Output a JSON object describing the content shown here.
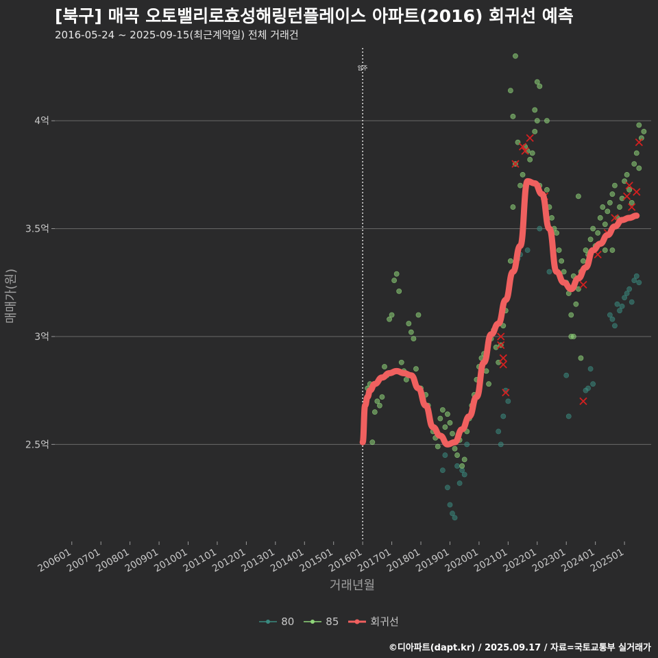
{
  "header": {
    "title": "[북구] 매곡 오토밸리로효성해링턴플레이스 아파트(2016) 회귀선 예측",
    "subtitle": "2016-05-24 ~ 2025-09-15(최근계약일) 전체 거래건"
  },
  "caption": "©디아파트(dapt.kr) / 2025.09.17 / 자료=국토교통부 실거래가",
  "colors": {
    "background": "#2a2a2b",
    "gridline": "#6a6a6a",
    "series_80": "#3a8a80",
    "series_85": "#8fd57a",
    "regression": "#f0605f",
    "highlight_x": "#d42020"
  },
  "chart_data": {
    "type": "scatter",
    "xlabel": "거래년월",
    "ylabel": "매매가(원)",
    "x_ticks": [
      "200601",
      "200701",
      "200801",
      "200901",
      "201001",
      "201101",
      "201201",
      "201301",
      "201401",
      "201501",
      "201601",
      "201701",
      "201801",
      "201901",
      "202001",
      "202101",
      "202201",
      "202301",
      "202401",
      "202501"
    ],
    "y_ticks": [
      {
        "value": 2.5,
        "label": "2.5억"
      },
      {
        "value": 3.0,
        "label": "3억"
      },
      {
        "value": 3.5,
        "label": "3.5억"
      },
      {
        "value": 4.0,
        "label": "4억"
      }
    ],
    "ylim": [
      2.05,
      4.35
    ],
    "xlim": [
      "2005-06",
      "2025-12"
    ],
    "annotation": {
      "label": "입주",
      "x": "2016-01"
    },
    "legend": {
      "position": "bottom",
      "entries": [
        {
          "key": "80",
          "label": "80"
        },
        {
          "key": "85",
          "label": "85"
        },
        {
          "key": "reg",
          "label": "회귀선"
        }
      ]
    },
    "series": [
      {
        "name": "80",
        "points": [
          [
            "2019-02",
            2.18
          ],
          [
            "2019-03",
            2.16
          ],
          [
            "2019-01",
            2.22
          ],
          [
            "2018-12",
            2.3
          ],
          [
            "2019-05",
            2.32
          ],
          [
            "2019-06",
            2.38
          ],
          [
            "2019-04",
            2.4
          ],
          [
            "2019-07",
            2.36
          ],
          [
            "2018-11",
            2.45
          ],
          [
            "2018-10",
            2.38
          ],
          [
            "2019-08",
            2.5
          ],
          [
            "2020-10",
            2.5
          ],
          [
            "2020-09",
            2.56
          ],
          [
            "2020-11",
            2.63
          ],
          [
            "2021-01",
            2.7
          ],
          [
            "2020-12",
            2.75
          ],
          [
            "2021-03",
            3.3
          ],
          [
            "2021-04",
            3.33
          ],
          [
            "2021-05",
            3.36
          ],
          [
            "2021-06",
            3.38
          ],
          [
            "2021-09",
            3.4
          ],
          [
            "2022-02",
            3.5
          ],
          [
            "2022-06",
            3.3
          ],
          [
            "2023-02",
            2.63
          ],
          [
            "2023-01",
            2.82
          ],
          [
            "2023-09",
            2.75
          ],
          [
            "2023-10",
            2.76
          ],
          [
            "2023-12",
            2.78
          ],
          [
            "2023-11",
            2.85
          ],
          [
            "2024-07",
            3.1
          ],
          [
            "2024-08",
            3.08
          ],
          [
            "2024-09",
            3.05
          ],
          [
            "2024-10",
            3.15
          ],
          [
            "2024-11",
            3.12
          ],
          [
            "2025-01",
            3.18
          ],
          [
            "2025-02",
            3.2
          ],
          [
            "2025-03",
            3.22
          ],
          [
            "2025-05",
            3.26
          ],
          [
            "2025-06",
            3.28
          ],
          [
            "2025-07",
            3.25
          ],
          [
            "2024-12",
            3.14
          ],
          [
            "2025-04",
            3.16
          ]
        ]
      },
      {
        "name": "85",
        "points": [
          [
            "2016-03",
            2.76
          ],
          [
            "2016-04",
            2.78
          ],
          [
            "2016-05",
            2.51
          ],
          [
            "2016-06",
            2.65
          ],
          [
            "2016-07",
            2.7
          ],
          [
            "2016-08",
            2.68
          ],
          [
            "2016-09",
            2.72
          ],
          [
            "2016-10",
            2.86
          ],
          [
            "2016-11",
            2.82
          ],
          [
            "2016-12",
            3.08
          ],
          [
            "2017-01",
            3.1
          ],
          [
            "2017-02",
            3.26
          ],
          [
            "2017-03",
            3.29
          ],
          [
            "2017-04",
            3.21
          ],
          [
            "2017-05",
            2.88
          ],
          [
            "2017-06",
            2.84
          ],
          [
            "2017-07",
            2.8
          ],
          [
            "2017-08",
            3.06
          ],
          [
            "2017-09",
            3.02
          ],
          [
            "2017-10",
            2.99
          ],
          [
            "2017-11",
            2.85
          ],
          [
            "2017-12",
            3.1
          ],
          [
            "2018-01",
            2.76
          ],
          [
            "2018-02",
            2.71
          ],
          [
            "2018-03",
            2.73
          ],
          [
            "2018-04",
            2.68
          ],
          [
            "2018-05",
            2.6
          ],
          [
            "2018-06",
            2.56
          ],
          [
            "2018-07",
            2.53
          ],
          [
            "2018-08",
            2.49
          ],
          [
            "2018-09",
            2.62
          ],
          [
            "2018-10",
            2.66
          ],
          [
            "2018-11",
            2.58
          ],
          [
            "2018-12",
            2.64
          ],
          [
            "2019-01",
            2.6
          ],
          [
            "2019-02",
            2.55
          ],
          [
            "2019-03",
            2.48
          ],
          [
            "2019-04",
            2.45
          ],
          [
            "2019-05",
            2.52
          ],
          [
            "2019-06",
            2.4
          ],
          [
            "2019-07",
            2.43
          ],
          [
            "2019-08",
            2.56
          ],
          [
            "2019-09",
            2.62
          ],
          [
            "2019-10",
            2.68
          ],
          [
            "2019-11",
            2.73
          ],
          [
            "2019-12",
            2.8
          ],
          [
            "2020-01",
            2.86
          ],
          [
            "2020-02",
            2.9
          ],
          [
            "2020-03",
            2.92
          ],
          [
            "2020-04",
            2.84
          ],
          [
            "2020-05",
            2.78
          ],
          [
            "2020-06",
            2.99
          ],
          [
            "2020-07",
            3.03
          ],
          [
            "2020-08",
            2.95
          ],
          [
            "2020-09",
            2.88
          ],
          [
            "2020-10",
            2.96
          ],
          [
            "2020-11",
            3.05
          ],
          [
            "2020-12",
            3.12
          ],
          [
            "2021-01",
            3.2
          ],
          [
            "2021-02",
            3.35
          ],
          [
            "2021-03",
            3.6
          ],
          [
            "2021-04",
            3.8
          ],
          [
            "2021-05",
            3.9
          ],
          [
            "2021-06",
            3.7
          ],
          [
            "2021-07",
            3.75
          ],
          [
            "2021-08",
            3.88
          ],
          [
            "2021-09",
            3.86
          ],
          [
            "2021-10",
            3.82
          ],
          [
            "2021-11",
            3.85
          ],
          [
            "2021-12",
            3.95
          ],
          [
            "2022-01",
            4.0
          ],
          [
            "2022-02",
            3.7
          ],
          [
            "2022-03",
            3.66
          ],
          [
            "2022-04",
            3.62
          ],
          [
            "2022-05",
            3.68
          ],
          [
            "2022-06",
            3.6
          ],
          [
            "2022-07",
            3.55
          ],
          [
            "2022-08",
            3.5
          ],
          [
            "2022-09",
            3.48
          ],
          [
            "2022-10",
            3.4
          ],
          [
            "2022-11",
            3.35
          ],
          [
            "2022-12",
            3.3
          ],
          [
            "2023-01",
            3.25
          ],
          [
            "2023-02",
            3.2
          ],
          [
            "2023-03",
            3.1
          ],
          [
            "2023-04",
            3.0
          ],
          [
            "2023-05",
            3.15
          ],
          [
            "2023-06",
            3.22
          ],
          [
            "2023-07",
            3.3
          ],
          [
            "2023-08",
            3.35
          ],
          [
            "2023-09",
            3.4
          ],
          [
            "2023-10",
            3.38
          ],
          [
            "2023-11",
            3.45
          ],
          [
            "2023-12",
            3.5
          ],
          [
            "2024-01",
            3.42
          ],
          [
            "2024-02",
            3.48
          ],
          [
            "2024-03",
            3.55
          ],
          [
            "2024-04",
            3.6
          ],
          [
            "2024-05",
            3.52
          ],
          [
            "2024-06",
            3.58
          ],
          [
            "2024-07",
            3.62
          ],
          [
            "2024-08",
            3.66
          ],
          [
            "2024-09",
            3.7
          ],
          [
            "2024-10",
            3.55
          ],
          [
            "2024-11",
            3.6
          ],
          [
            "2024-12",
            3.64
          ],
          [
            "2025-01",
            3.72
          ],
          [
            "2025-02",
            3.75
          ],
          [
            "2025-03",
            3.68
          ],
          [
            "2025-04",
            3.62
          ],
          [
            "2025-05",
            3.8
          ],
          [
            "2025-06",
            3.85
          ],
          [
            "2025-07",
            3.78
          ],
          [
            "2025-08",
            3.92
          ],
          [
            "2025-09",
            3.95
          ],
          [
            "2021-02",
            4.14
          ],
          [
            "2021-04",
            4.3
          ],
          [
            "2021-03",
            4.02
          ],
          [
            "2022-01",
            4.18
          ],
          [
            "2022-02",
            4.16
          ],
          [
            "2021-12",
            4.05
          ],
          [
            "2022-05",
            4.0
          ],
          [
            "2023-06",
            3.65
          ],
          [
            "2023-04",
            3.28
          ],
          [
            "2023-07",
            2.9
          ],
          [
            "2023-03",
            3.0
          ],
          [
            "2024-05",
            3.4
          ],
          [
            "2024-08",
            3.4
          ],
          [
            "2025-07",
            3.98
          ]
        ]
      }
    ],
    "highlighted_points": [
      [
        "2020-10",
        3.0
      ],
      [
        "2020-10",
        2.96
      ],
      [
        "2020-11",
        2.9
      ],
      [
        "2020-11",
        2.87
      ],
      [
        "2020-12",
        2.74
      ],
      [
        "2021-04",
        3.8
      ],
      [
        "2021-07",
        3.88
      ],
      [
        "2021-08",
        3.86
      ],
      [
        "2021-10",
        3.92
      ],
      [
        "2022-04",
        3.65
      ],
      [
        "2023-08",
        2.7
      ],
      [
        "2023-08",
        3.24
      ],
      [
        "2024-02",
        3.38
      ],
      [
        "2024-06",
        3.48
      ],
      [
        "2024-09",
        3.55
      ],
      [
        "2025-02",
        3.65
      ],
      [
        "2025-03",
        3.7
      ],
      [
        "2025-04",
        3.6
      ],
      [
        "2025-06",
        3.67
      ],
      [
        "2025-07",
        3.9
      ]
    ],
    "regression_line": [
      [
        "2016-01",
        2.51
      ],
      [
        "2016-02",
        2.68
      ],
      [
        "2016-03",
        2.72
      ],
      [
        "2016-04",
        2.75
      ],
      [
        "2016-06",
        2.78
      ],
      [
        "2016-09",
        2.81
      ],
      [
        "2016-12",
        2.83
      ],
      [
        "2017-03",
        2.84
      ],
      [
        "2017-06",
        2.83
      ],
      [
        "2017-09",
        2.82
      ],
      [
        "2017-12",
        2.76
      ],
      [
        "2018-03",
        2.68
      ],
      [
        "2018-06",
        2.58
      ],
      [
        "2018-09",
        2.54
      ],
      [
        "2018-12",
        2.5
      ],
      [
        "2019-03",
        2.51
      ],
      [
        "2019-06",
        2.57
      ],
      [
        "2019-09",
        2.63
      ],
      [
        "2019-12",
        2.72
      ],
      [
        "2020-03",
        2.88
      ],
      [
        "2020-06",
        3.01
      ],
      [
        "2020-09",
        3.06
      ],
      [
        "2020-12",
        3.17
      ],
      [
        "2021-03",
        3.3
      ],
      [
        "2021-06",
        3.42
      ],
      [
        "2021-09",
        3.72
      ],
      [
        "2021-12",
        3.71
      ],
      [
        "2022-03",
        3.66
      ],
      [
        "2022-06",
        3.5
      ],
      [
        "2022-09",
        3.3
      ],
      [
        "2022-12",
        3.25
      ],
      [
        "2023-03",
        3.22
      ],
      [
        "2023-06",
        3.27
      ],
      [
        "2023-09",
        3.32
      ],
      [
        "2023-12",
        3.4
      ],
      [
        "2024-03",
        3.43
      ],
      [
        "2024-06",
        3.47
      ],
      [
        "2024-09",
        3.51
      ],
      [
        "2024-12",
        3.54
      ],
      [
        "2025-03",
        3.55
      ],
      [
        "2025-06",
        3.56
      ]
    ]
  }
}
